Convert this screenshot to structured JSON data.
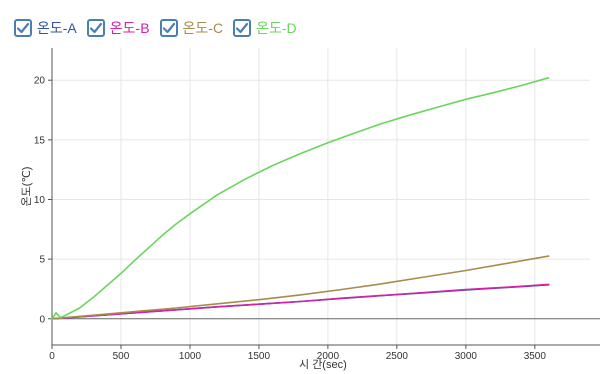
{
  "legend": [
    {
      "label": "온도-A",
      "color": "#2f55a4",
      "checked": true,
      "icon": "checkmark-icon"
    },
    {
      "label": "온도-B",
      "color": "#d321a8",
      "checked": true,
      "icon": "checkmark-icon"
    },
    {
      "label": "온도-C",
      "color": "#a58c4b",
      "checked": true,
      "icon": "checkmark-icon"
    },
    {
      "label": "온도-D",
      "color": "#6ad55e",
      "checked": true,
      "icon": "checkmark-icon"
    }
  ],
  "checkbox_color": "#4a7fb5",
  "chart_data": {
    "type": "line",
    "xlabel": "시 간(sec)",
    "ylabel": "온도(℃)",
    "xlim": [
      0,
      3900
    ],
    "ylim": [
      -2.2,
      22.7
    ],
    "xticks": [
      0,
      500,
      1000,
      1500,
      2000,
      2500,
      3000,
      3500
    ],
    "yticks": [
      0,
      5,
      10,
      15,
      20
    ],
    "grid": true,
    "legend_position": "top-left",
    "series": [
      {
        "name": "온도-A",
        "color": "#2f55a4",
        "x": [
          0,
          300,
          600,
          900,
          1200,
          1500,
          1800,
          2100,
          2400,
          2700,
          3000,
          3300,
          3600
        ],
        "y": [
          0,
          0.25,
          0.5,
          0.75,
          1.0,
          1.22,
          1.45,
          1.7,
          1.95,
          2.18,
          2.42,
          2.62,
          2.85
        ]
      },
      {
        "name": "온도-B",
        "color": "#d321a8",
        "x": [
          0,
          300,
          600,
          900,
          1200,
          1500,
          1800,
          2100,
          2400,
          2700,
          3000,
          3300,
          3600
        ],
        "y": [
          0,
          0.25,
          0.5,
          0.75,
          1.0,
          1.22,
          1.45,
          1.72,
          1.96,
          2.2,
          2.45,
          2.65,
          2.88
        ]
      },
      {
        "name": "온도-C",
        "color": "#a58c4b",
        "x": [
          0,
          300,
          600,
          900,
          1200,
          1500,
          1800,
          2100,
          2400,
          2700,
          3000,
          3300,
          3600
        ],
        "y": [
          0,
          0.3,
          0.6,
          0.9,
          1.25,
          1.6,
          2.0,
          2.45,
          2.95,
          3.5,
          4.05,
          4.65,
          5.25
        ]
      },
      {
        "name": "온도-D",
        "color": "#6ad55e",
        "x": [
          0,
          30,
          60,
          100,
          200,
          300,
          400,
          500,
          600,
          700,
          800,
          900,
          1000,
          1200,
          1400,
          1600,
          1800,
          2000,
          2200,
          2400,
          2600,
          2800,
          3000,
          3200,
          3400,
          3600
        ],
        "y": [
          0,
          0.5,
          0.1,
          0.3,
          0.9,
          1.8,
          2.8,
          3.8,
          4.9,
          5.95,
          7.0,
          7.95,
          8.8,
          10.4,
          11.7,
          12.85,
          13.85,
          14.75,
          15.6,
          16.4,
          17.1,
          17.75,
          18.4,
          18.95,
          19.55,
          20.2
        ]
      }
    ]
  }
}
